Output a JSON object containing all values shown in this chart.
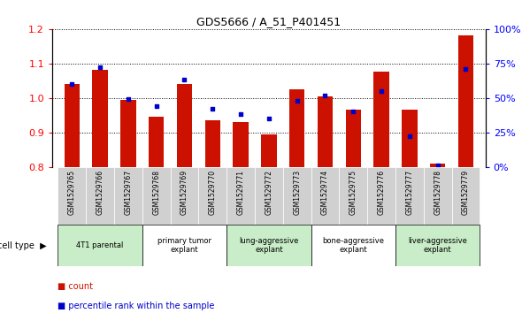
{
  "title": "GDS5666 / A_51_P401451",
  "samples": [
    "GSM1529765",
    "GSM1529766",
    "GSM1529767",
    "GSM1529768",
    "GSM1529769",
    "GSM1529770",
    "GSM1529771",
    "GSM1529772",
    "GSM1529773",
    "GSM1529774",
    "GSM1529775",
    "GSM1529776",
    "GSM1529777",
    "GSM1529778",
    "GSM1529779"
  ],
  "red_values": [
    1.04,
    1.08,
    0.995,
    0.945,
    1.04,
    0.935,
    0.93,
    0.895,
    1.025,
    1.005,
    0.965,
    1.075,
    0.965,
    0.81,
    1.18
  ],
  "blue_values": [
    0.6,
    0.72,
    0.49,
    0.44,
    0.63,
    0.42,
    0.38,
    0.35,
    0.48,
    0.52,
    0.4,
    0.55,
    0.22,
    0.01,
    0.71
  ],
  "cell_types": [
    {
      "label": "4T1 parental",
      "start": 0,
      "end": 2,
      "color": "#c8edc8"
    },
    {
      "label": "primary tumor\nexplant",
      "start": 3,
      "end": 5,
      "color": "#ffffff"
    },
    {
      "label": "lung-aggressive\nexplant",
      "start": 6,
      "end": 8,
      "color": "#c8edc8"
    },
    {
      "label": "bone-aggressive\nexplant",
      "start": 9,
      "end": 11,
      "color": "#ffffff"
    },
    {
      "label": "liver-aggressive\nexplant",
      "start": 12,
      "end": 14,
      "color": "#c8edc8"
    }
  ],
  "ylim_left": [
    0.8,
    1.2
  ],
  "ylim_right": [
    0.0,
    1.0
  ],
  "yticks_left": [
    0.8,
    0.9,
    1.0,
    1.1,
    1.2
  ],
  "yticks_right_vals": [
    0.0,
    0.25,
    0.5,
    0.75,
    1.0
  ],
  "yticks_right_labels": [
    "0%",
    "25%",
    "50%",
    "75%",
    "100%"
  ],
  "bar_color": "#cc1100",
  "dot_color": "#0000cc",
  "bar_width": 0.55,
  "bg_color": "#ffffff",
  "sample_bg_color": "#cccccc",
  "legend_items": [
    {
      "color": "#cc1100",
      "label": "count"
    },
    {
      "color": "#0000cc",
      "label": "percentile rank within the sample"
    }
  ]
}
